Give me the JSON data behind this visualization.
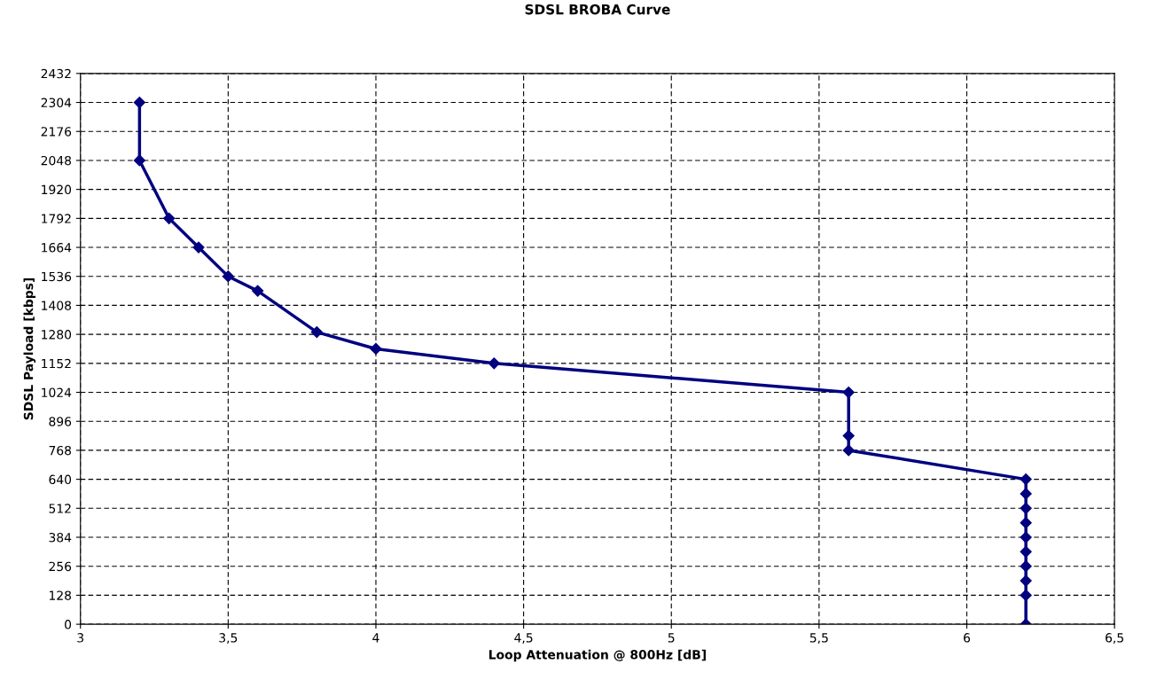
{
  "chart_data": {
    "type": "line",
    "title": "SDSL BROBA Curve",
    "xlabel": "Loop Attenuation @ 800Hz [dB]",
    "ylabel": "SDSL Payload [kbps]",
    "x": [
      3.2,
      3.2,
      3.3,
      3.4,
      3.5,
      3.6,
      3.8,
      4.0,
      4.4,
      5.6,
      5.6,
      5.6,
      6.2,
      6.2,
      6.2,
      6.2,
      6.2,
      6.2,
      6.2,
      6.2,
      6.2,
      6.2
    ],
    "series": [
      {
        "color": "#000080",
        "values": [
          2304,
          2048,
          1792,
          1664,
          1536,
          1472,
          1290,
          1216,
          1152,
          1024,
          832,
          768,
          640,
          576,
          512,
          448,
          384,
          320,
          256,
          192,
          128,
          0
        ]
      }
    ],
    "xlim": [
      3,
      6.5
    ],
    "xticks": [
      3,
      {
        "value": 3.5,
        "label": "3,5"
      },
      4,
      {
        "value": 4.5,
        "label": "4,5"
      },
      5,
      {
        "value": 5.5,
        "label": "5,5"
      },
      6,
      {
        "value": 6.5,
        "label": "6,5"
      }
    ],
    "ylim": [
      0,
      2432
    ],
    "yticks": [
      0,
      128,
      256,
      384,
      512,
      640,
      768,
      896,
      1024,
      1152,
      1280,
      1408,
      1536,
      1664,
      1792,
      1920,
      2048,
      2176,
      2304,
      2432
    ],
    "grid": true,
    "marker": "diamond",
    "line_style": "solid"
  }
}
